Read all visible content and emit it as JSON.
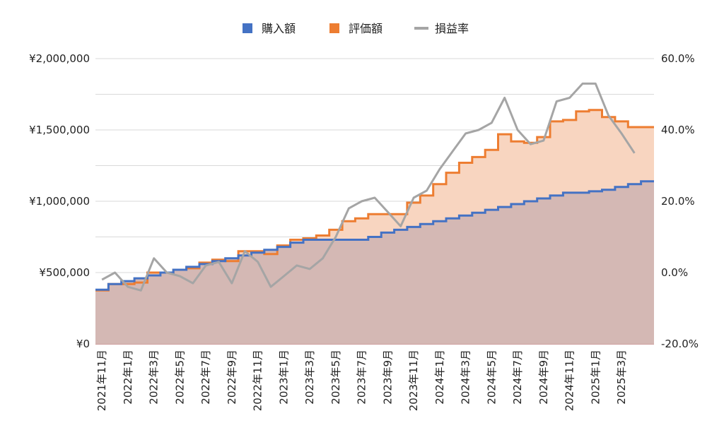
{
  "chart_data": {
    "type": "area",
    "colors": {
      "purchase": "#4472C4",
      "valuation": "#ED7D31",
      "profit_rate": "#A5A5A5",
      "valuation_fill": "#F8D5C0",
      "purchase_fill": "#D4B8B4",
      "grid": "#d9d9d9"
    },
    "legend": [
      "購入額",
      "評価額",
      "損益率"
    ],
    "legend_position": "top",
    "grid": true,
    "ylim_left": [
      0,
      2000000
    ],
    "ylim_right": [
      -20,
      60
    ],
    "left_ticks": [
      "¥0",
      "¥500,000",
      "¥1,000,000",
      "¥1,500,000",
      "¥2,000,000"
    ],
    "right_ticks": [
      "-20.0%",
      "0.0%",
      "20.0%",
      "40.0%",
      "60.0%"
    ],
    "x_tick_labels": [
      "2021年11月",
      "2022年1月",
      "2022年3月",
      "2022年5月",
      "2022年7月",
      "2022年9月",
      "2022年11月",
      "2023年1月",
      "2023年3月",
      "2023年5月",
      "2023年7月",
      "2023年9月",
      "2023年11月",
      "2024年1月",
      "2024年3月",
      "2024年5月",
      "2024年7月",
      "2024年9月",
      "2024年11月",
      "2025年1月",
      "2025年3月"
    ],
    "x": [
      "2021-11",
      "2021-12",
      "2022-01",
      "2022-02",
      "2022-03",
      "2022-04",
      "2022-05",
      "2022-06",
      "2022-07",
      "2022-08",
      "2022-09",
      "2022-10",
      "2022-11",
      "2022-12",
      "2023-01",
      "2023-02",
      "2023-03",
      "2023-04",
      "2023-05",
      "2023-06",
      "2023-07",
      "2023-08",
      "2023-09",
      "2023-10",
      "2023-11",
      "2023-12",
      "2024-01",
      "2024-02",
      "2024-03",
      "2024-04",
      "2024-05",
      "2024-06",
      "2024-07",
      "2024-08",
      "2024-09",
      "2024-10",
      "2024-11",
      "2024-12",
      "2025-01",
      "2025-02",
      "2025-03",
      "2025-04",
      "2025-05"
    ],
    "series": [
      {
        "name": "購入額",
        "axis": "left",
        "values": [
          380000,
          420000,
          440000,
          460000,
          480000,
          500000,
          520000,
          540000,
          560000,
          580000,
          600000,
          620000,
          640000,
          660000,
          680000,
          710000,
          730000,
          730000,
          730000,
          730000,
          730000,
          750000,
          780000,
          800000,
          820000,
          840000,
          860000,
          880000,
          900000,
          920000,
          940000,
          960000,
          980000,
          1000000,
          1020000,
          1040000,
          1060000,
          1060000,
          1070000,
          1080000,
          1100000,
          1120000,
          1140000
        ]
      },
      {
        "name": "評価額",
        "axis": "left",
        "values": [
          375000,
          420000,
          420000,
          430000,
          500000,
          500000,
          520000,
          530000,
          570000,
          590000,
          580000,
          650000,
          650000,
          630000,
          690000,
          730000,
          740000,
          760000,
          800000,
          860000,
          880000,
          910000,
          910000,
          910000,
          990000,
          1040000,
          1120000,
          1200000,
          1270000,
          1310000,
          1360000,
          1470000,
          1420000,
          1410000,
          1450000,
          1560000,
          1570000,
          1630000,
          1640000,
          1590000,
          1560000,
          1520000,
          1520000
        ]
      },
      {
        "name": "損益率",
        "axis": "right",
        "values": [
          -2,
          0,
          -4,
          -5,
          4,
          0,
          -1,
          -3,
          2,
          3,
          -3,
          6,
          3,
          -4,
          -1,
          2,
          1,
          4,
          10,
          18,
          20,
          21,
          17,
          13,
          21,
          23,
          29,
          34,
          39,
          40,
          42,
          49,
          40,
          36,
          37,
          48,
          49,
          53,
          53,
          44,
          39,
          33.5,
          null
        ]
      }
    ]
  }
}
